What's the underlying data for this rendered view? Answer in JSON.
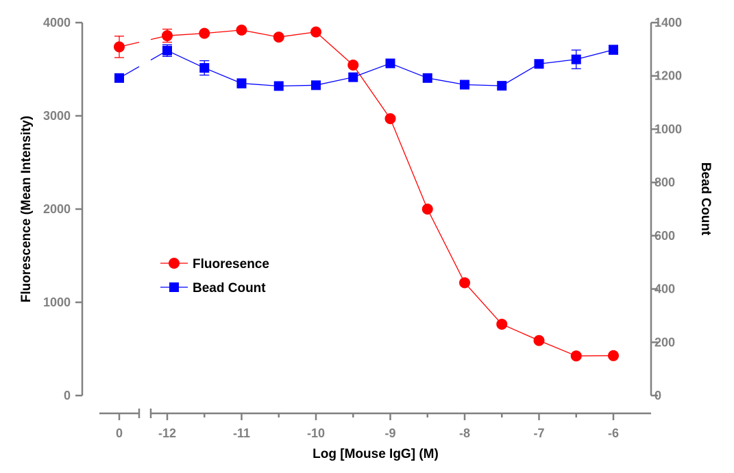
{
  "chart_data": {
    "type": "line",
    "xlabel": "Log [Mouse IgG] (M)",
    "ylabel_left": "Fluorescence (Mean Intensity)",
    "ylabel_right": "Bead Count",
    "x_axis": {
      "type": "broken",
      "ticks": [
        0,
        -12,
        -11,
        -10,
        -9,
        -8,
        -7,
        -6
      ],
      "tick_labels": [
        "0",
        "-12",
        "-11",
        "-10",
        "-9",
        "-8",
        "-7",
        "-6"
      ]
    },
    "ylim_left": [
      0,
      4000
    ],
    "yticks_left": [
      0,
      1000,
      2000,
      3000,
      4000
    ],
    "ylim_right": [
      0,
      1400
    ],
    "yticks_right": [
      0,
      200,
      400,
      600,
      800,
      1000,
      1200,
      1400
    ],
    "grid": false,
    "legend_position": "center-left",
    "series": [
      {
        "name": "Fluoresence",
        "axis": "left",
        "color": "#ff0000",
        "marker": "circle",
        "points": [
          {
            "x": 0,
            "y": 3740,
            "err": 115
          },
          {
            "x": -12,
            "y": 3860,
            "err": 70
          },
          {
            "x": -11.5,
            "y": 3885,
            "err": 0
          },
          {
            "x": -11,
            "y": 3920,
            "err": 0
          },
          {
            "x": -10.5,
            "y": 3845,
            "err": 0
          },
          {
            "x": -10,
            "y": 3900,
            "err": 0
          },
          {
            "x": -9.5,
            "y": 3545,
            "err": 0
          },
          {
            "x": -9,
            "y": 2970,
            "err": 0
          },
          {
            "x": -8.5,
            "y": 2000,
            "err": 0
          },
          {
            "x": -8,
            "y": 1210,
            "err": 0
          },
          {
            "x": -7.5,
            "y": 765,
            "err": 0
          },
          {
            "x": -7,
            "y": 590,
            "err": 0
          },
          {
            "x": -6.5,
            "y": 425,
            "err": 0
          },
          {
            "x": -6,
            "y": 428,
            "err": 0
          }
        ]
      },
      {
        "name": "Bead Count",
        "axis": "right",
        "color": "#0000ff",
        "marker": "square",
        "points": [
          {
            "x": 0,
            "y": 1192,
            "err": 0
          },
          {
            "x": -12,
            "y": 1295,
            "err": 22
          },
          {
            "x": -11.5,
            "y": 1230,
            "err": 27
          },
          {
            "x": -11,
            "y": 1172,
            "err": 17
          },
          {
            "x": -10.5,
            "y": 1162,
            "err": 0
          },
          {
            "x": -10,
            "y": 1165,
            "err": 0
          },
          {
            "x": -9.5,
            "y": 1195,
            "err": 0
          },
          {
            "x": -9,
            "y": 1247,
            "err": 0
          },
          {
            "x": -8.5,
            "y": 1192,
            "err": 0
          },
          {
            "x": -8,
            "y": 1167,
            "err": 0
          },
          {
            "x": -7.5,
            "y": 1163,
            "err": 0
          },
          {
            "x": -7,
            "y": 1245,
            "err": 0
          },
          {
            "x": -6.5,
            "y": 1262,
            "err": 35
          },
          {
            "x": -6,
            "y": 1298,
            "err": 17
          }
        ]
      }
    ]
  }
}
